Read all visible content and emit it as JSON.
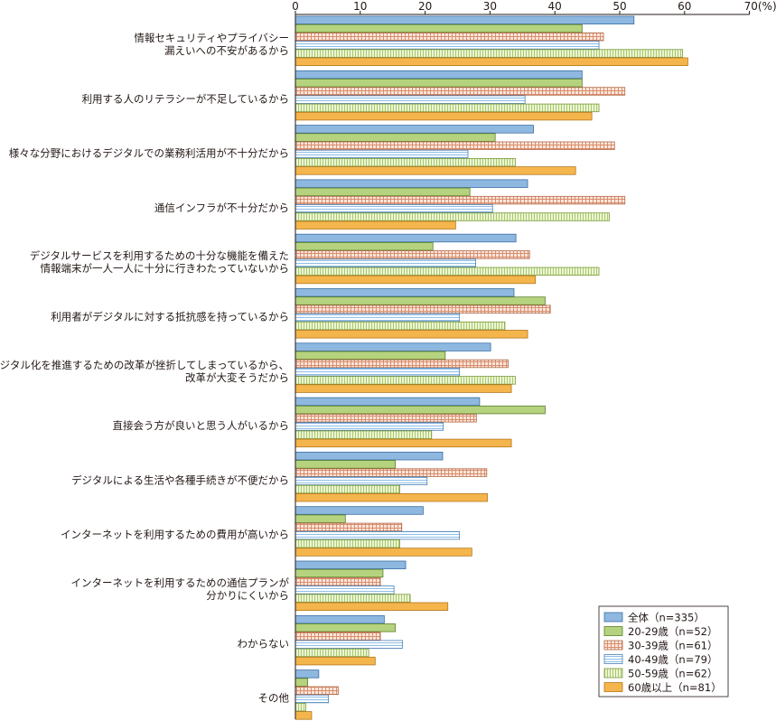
{
  "chart_data": {
    "type": "bar",
    "orientation": "horizontal",
    "unit_label": "(%)",
    "xlim": [
      0,
      70
    ],
    "ticks": [
      0,
      10,
      20,
      30,
      40,
      50,
      60,
      70
    ],
    "tick_labels": [
      "0",
      "10",
      "20",
      "30",
      "40",
      "50",
      "60",
      "70(%)"
    ],
    "categories": [
      [
        "情報セキュリティやプライバシー",
        "漏えいへの不安があるから"
      ],
      [
        "利用する人のリテラシーが不足しているから"
      ],
      [
        "様々な分野におけるデジタルでの業務利活用が不十分だから"
      ],
      [
        "通信インフラが不十分だから"
      ],
      [
        "デジタルサービスを利用するための十分な機能を備えた",
        "情報端末が一人一人に十分に行きわたっていないから"
      ],
      [
        "利用者がデジタルに対する抵抗感を持っているから"
      ],
      [
        "デジタル化を推進するための改革が挫折してしまっているから、",
        "改革が大変そうだから"
      ],
      [
        "直接会う方が良いと思う人がいるから"
      ],
      [
        "デジタルによる生活や各種手続きが不便だから"
      ],
      [
        "インターネットを利用するための費用が高いから"
      ],
      [
        "インターネットを利用するための通信プランが",
        "分かりにくいから"
      ],
      [
        "わからない"
      ],
      [
        "その他"
      ]
    ],
    "series": [
      {
        "name": "全体（n=335）",
        "color": "#8fb8e0",
        "pattern": "solid",
        "values": [
          52.2,
          44.2,
          36.7,
          35.8,
          34.0,
          33.7,
          30.1,
          28.4,
          22.7,
          19.7,
          17.0,
          13.7,
          3.6
        ]
      },
      {
        "name": "20-29歳（n=52）",
        "color": "#b5d37e",
        "pattern": "solid",
        "values": [
          44.2,
          44.2,
          30.8,
          26.9,
          21.2,
          38.5,
          23.1,
          38.5,
          15.4,
          7.7,
          13.5,
          15.4,
          1.9
        ]
      },
      {
        "name": "30-39歳（n=61）",
        "color": "#e8a98a",
        "pattern": "grid",
        "values": [
          47.5,
          50.8,
          49.2,
          50.8,
          36.1,
          39.3,
          32.8,
          27.9,
          29.5,
          16.4,
          13.1,
          13.1,
          6.6
        ]
      },
      {
        "name": "40-49歳（n=79）",
        "color": "#a9cdee",
        "pattern": "hstripe",
        "values": [
          46.8,
          35.4,
          26.6,
          30.4,
          27.8,
          25.3,
          25.3,
          22.8,
          20.3,
          25.3,
          15.2,
          16.5,
          5.1
        ]
      },
      {
        "name": "50-59歳（n=62）",
        "color": "#c6dc8e",
        "pattern": "vstripe",
        "values": [
          59.7,
          46.8,
          33.9,
          48.4,
          46.8,
          32.3,
          33.9,
          21.0,
          16.1,
          16.1,
          17.7,
          11.3,
          1.6
        ]
      },
      {
        "name": "60歳以上（n=81）",
        "color": "#f5b54d",
        "pattern": "solid",
        "values": [
          60.5,
          45.7,
          43.2,
          24.7,
          37.0,
          35.8,
          33.3,
          33.3,
          29.6,
          27.2,
          23.5,
          12.3,
          2.5
        ]
      }
    ],
    "legend_position": "bottom-right",
    "grid": false
  }
}
